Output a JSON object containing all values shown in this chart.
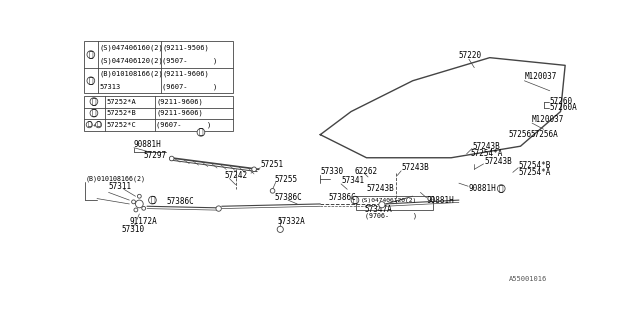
{
  "bg_color": "#ffffff",
  "line_color": "#444444",
  "text_color": "#000000",
  "diagram_code": "A55001016",
  "table1_rows": [
    [
      "(S)047406160(2)",
      "(9211-9506)"
    ],
    [
      "(S)047406120(2)",
      "(9507-      )"
    ],
    [
      "(B)010108166(2)",
      "(9211-9606)"
    ],
    [
      "57313",
      "(9607-      )"
    ]
  ],
  "table2_rows": [
    [
      "57252*A",
      "(9211-9606)"
    ],
    [
      "57252*B",
      "(9211-9606)"
    ],
    [
      "57252*C",
      "(9607-      )"
    ]
  ]
}
